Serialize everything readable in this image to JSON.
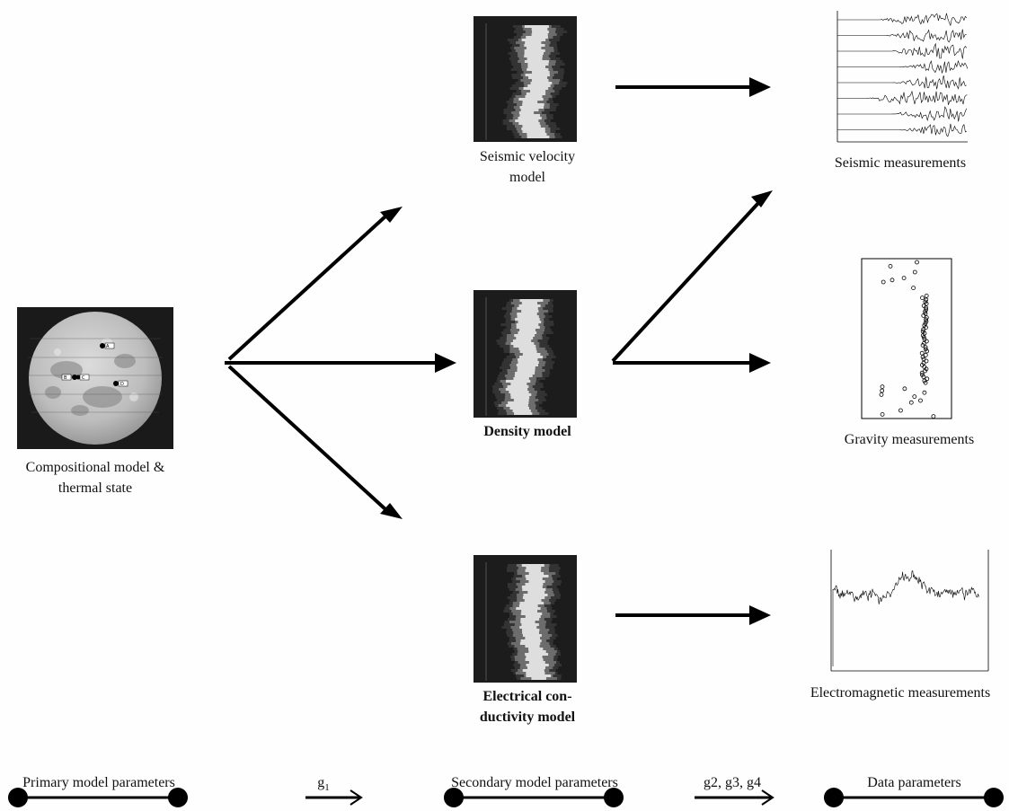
{
  "primary": {
    "caption_line1": "Compositional model &",
    "caption_line2": "thermal state",
    "markers": [
      "A",
      "B",
      "C",
      "D"
    ]
  },
  "secondary": {
    "seismic_line1": "Seismic velocity",
    "seismic_line2": "model",
    "density": "Density model",
    "electrical_line1": "Electrical con-",
    "electrical_line2": "ductivity model"
  },
  "data": {
    "seismic": "Seismic measurements",
    "gravity": "Gravity measurements",
    "electromagnetic": "Electromagnetic measurements"
  },
  "bottom": {
    "primary": "Primary model parameters",
    "g1": "g",
    "g1_sub": "1",
    "secondary": "Secondary model parameters",
    "g234": "g2, g3, g4",
    "data": "Data parameters"
  }
}
